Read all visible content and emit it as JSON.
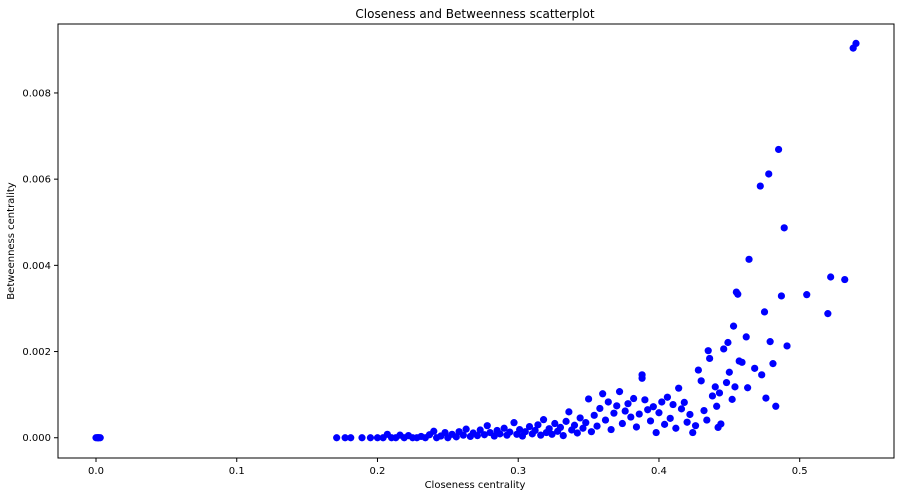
{
  "chart_data": {
    "type": "scatter",
    "title": "Closeness and Betweenness scatterplot",
    "xlabel": "Closeness centrality",
    "ylabel": "Betweenness centrality",
    "xlim": [
      -0.027,
      0.567
    ],
    "ylim": [
      -0.00047,
      0.0096
    ],
    "xticks": [
      0.0,
      0.1,
      0.2,
      0.3,
      0.4,
      0.5
    ],
    "xtick_labels": [
      "0.0",
      "0.1",
      "0.2",
      "0.3",
      "0.4",
      "0.5"
    ],
    "yticks": [
      0.0,
      0.002,
      0.004,
      0.006,
      0.008
    ],
    "ytick_labels": [
      "0.000",
      "0.002",
      "0.004",
      "0.006",
      "0.008"
    ],
    "grid": false,
    "marker_color": "#0000ff",
    "series": [
      {
        "points": [
          [
            0.0,
            0.0
          ],
          [
            0.001,
            0.0
          ],
          [
            0.002,
            0.0
          ],
          [
            0.003,
            0.0
          ],
          [
            0.0015,
            0.0
          ],
          [
            0.171,
            0.0
          ],
          [
            0.177,
            0.0
          ],
          [
            0.181,
            0.0
          ],
          [
            0.189,
            0.0
          ],
          [
            0.195,
            0.0
          ],
          [
            0.2,
            0.0
          ],
          [
            0.204,
            0.0
          ],
          [
            0.207,
            8e-05
          ],
          [
            0.21,
            0.0
          ],
          [
            0.213,
            0.0
          ],
          [
            0.216,
            6e-05
          ],
          [
            0.219,
            0.0
          ],
          [
            0.222,
            5e-05
          ],
          [
            0.225,
            0.0
          ],
          [
            0.228,
            0.0
          ],
          [
            0.231,
            3e-05
          ],
          [
            0.234,
            0.0
          ],
          [
            0.237,
            7e-05
          ],
          [
            0.24,
            0.00015
          ],
          [
            0.242,
            0.0
          ],
          [
            0.245,
            4e-05
          ],
          [
            0.248,
            0.00012
          ],
          [
            0.25,
            0.0
          ],
          [
            0.253,
            8e-05
          ],
          [
            0.256,
            2e-05
          ],
          [
            0.258,
            0.00014
          ],
          [
            0.261,
            6e-05
          ],
          [
            0.263,
            0.0002
          ],
          [
            0.266,
            3e-05
          ],
          [
            0.268,
            0.00011
          ],
          [
            0.271,
            5e-05
          ],
          [
            0.273,
            0.00018
          ],
          [
            0.276,
            7e-05
          ],
          [
            0.278,
            0.00028
          ],
          [
            0.28,
            0.00012
          ],
          [
            0.283,
            4e-05
          ],
          [
            0.285,
            0.00017
          ],
          [
            0.287,
            9e-05
          ],
          [
            0.29,
            0.00022
          ],
          [
            0.292,
            6e-05
          ],
          [
            0.294,
            0.00013
          ],
          [
            0.297,
            0.00035
          ],
          [
            0.299,
            8e-05
          ],
          [
            0.301,
            0.00019
          ],
          [
            0.303,
            4e-05
          ],
          [
            0.305,
            0.00014
          ],
          [
            0.308,
            0.00026
          ],
          [
            0.31,
            9e-05
          ],
          [
            0.312,
            0.00017
          ],
          [
            0.314,
            0.0003
          ],
          [
            0.316,
            6e-05
          ],
          [
            0.318,
            0.00042
          ],
          [
            0.32,
            0.00012
          ],
          [
            0.322,
            0.00021
          ],
          [
            0.324,
            8e-05
          ],
          [
            0.326,
            0.00033
          ],
          [
            0.328,
            0.00015
          ],
          [
            0.33,
            0.00024
          ],
          [
            0.332,
            5e-05
          ],
          [
            0.334,
            0.00038
          ],
          [
            0.336,
            0.0006
          ],
          [
            0.338,
            0.00018
          ],
          [
            0.34,
            0.00029
          ],
          [
            0.342,
            0.00011
          ],
          [
            0.344,
            0.00046
          ],
          [
            0.346,
            0.00022
          ],
          [
            0.348,
            0.00035
          ],
          [
            0.35,
            0.0009
          ],
          [
            0.352,
            0.00014
          ],
          [
            0.354,
            0.00052
          ],
          [
            0.356,
            0.00027
          ],
          [
            0.358,
            0.00068
          ],
          [
            0.36,
            0.00102
          ],
          [
            0.362,
            0.00041
          ],
          [
            0.364,
            0.00083
          ],
          [
            0.366,
            0.00019
          ],
          [
            0.368,
            0.00057
          ],
          [
            0.37,
            0.00074
          ],
          [
            0.372,
            0.00107
          ],
          [
            0.374,
            0.00033
          ],
          [
            0.376,
            0.00062
          ],
          [
            0.378,
            0.00079
          ],
          [
            0.38,
            0.00048
          ],
          [
            0.382,
            0.00091
          ],
          [
            0.384,
            0.00025
          ],
          [
            0.386,
            0.00055
          ],
          [
            0.388,
            0.00146
          ],
          [
            0.388,
            0.00138
          ],
          [
            0.39,
            0.00088
          ],
          [
            0.392,
            0.00065
          ],
          [
            0.394,
            0.00039
          ],
          [
            0.396,
            0.00072
          ],
          [
            0.398,
            0.00012
          ],
          [
            0.4,
            0.00058
          ],
          [
            0.402,
            0.00083
          ],
          [
            0.404,
            0.00031
          ],
          [
            0.406,
            0.00094
          ],
          [
            0.408,
            0.00045
          ],
          [
            0.41,
            0.00077
          ],
          [
            0.412,
            0.00022
          ],
          [
            0.414,
            0.00115
          ],
          [
            0.416,
            0.00067
          ],
          [
            0.418,
            0.00082
          ],
          [
            0.42,
            0.00036
          ],
          [
            0.422,
            0.00054
          ],
          [
            0.424,
            0.00012
          ],
          [
            0.426,
            0.00028
          ],
          [
            0.428,
            0.00157
          ],
          [
            0.43,
            0.00132
          ],
          [
            0.432,
            0.00063
          ],
          [
            0.434,
            0.00041
          ],
          [
            0.435,
            0.00202
          ],
          [
            0.436,
            0.00184
          ],
          [
            0.438,
            0.00097
          ],
          [
            0.44,
            0.00118
          ],
          [
            0.441,
            0.00073
          ],
          [
            0.442,
            0.00024
          ],
          [
            0.443,
            0.00104
          ],
          [
            0.444,
            0.00032
          ],
          [
            0.446,
            0.00206
          ],
          [
            0.448,
            0.00128
          ],
          [
            0.449,
            0.00221
          ],
          [
            0.45,
            0.00152
          ],
          [
            0.452,
            0.00089
          ],
          [
            0.453,
            0.00259
          ],
          [
            0.454,
            0.00118
          ],
          [
            0.455,
            0.00338
          ],
          [
            0.456,
            0.00333
          ],
          [
            0.457,
            0.00178
          ],
          [
            0.459,
            0.00175
          ],
          [
            0.462,
            0.00234
          ],
          [
            0.463,
            0.00116
          ],
          [
            0.464,
            0.00414
          ],
          [
            0.468,
            0.00161
          ],
          [
            0.472,
            0.00584
          ],
          [
            0.473,
            0.00146
          ],
          [
            0.475,
            0.00292
          ],
          [
            0.476,
            0.00092
          ],
          [
            0.478,
            0.00612
          ],
          [
            0.479,
            0.00223
          ],
          [
            0.481,
            0.00172
          ],
          [
            0.483,
            0.00073
          ],
          [
            0.485,
            0.00669
          ],
          [
            0.487,
            0.00329
          ],
          [
            0.489,
            0.00487
          ],
          [
            0.491,
            0.00213
          ],
          [
            0.505,
            0.00332
          ],
          [
            0.52,
            0.00288
          ],
          [
            0.522,
            0.00373
          ],
          [
            0.532,
            0.00367
          ],
          [
            0.538,
            0.00904
          ],
          [
            0.54,
            0.00915
          ]
        ]
      }
    ]
  }
}
